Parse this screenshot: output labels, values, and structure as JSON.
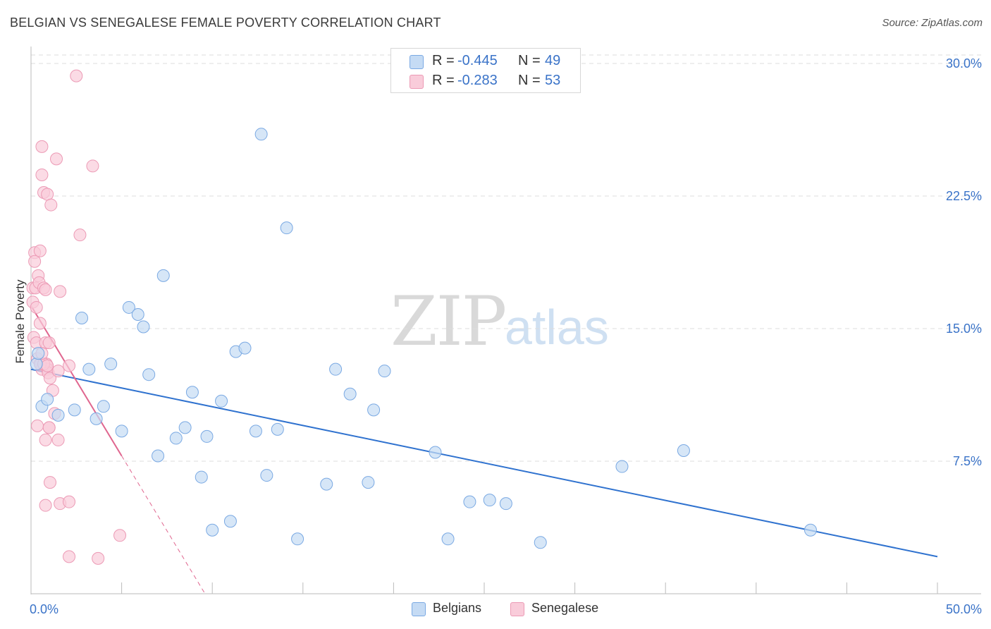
{
  "title": "BELGIAN VS SENEGALESE FEMALE POVERTY CORRELATION CHART",
  "source": "Source: ZipAtlas.com",
  "watermark": {
    "zip": "ZIP",
    "atlas": "atlas"
  },
  "legend": {
    "rows": [
      {
        "r_label": "R =",
        "r_value": "-0.445",
        "n_label": "N =",
        "n_value": "49",
        "color": "#a9c8ef"
      },
      {
        "r_label": "R =",
        "r_value": "-0.283",
        "n_label": "N =",
        "n_value": "53",
        "color": "#f5b8cb"
      }
    ]
  },
  "bottom_legend": [
    {
      "label": "Belgians",
      "color": "#a9c8ef"
    },
    {
      "label": "Senegalese",
      "color": "#f5b8cb"
    }
  ],
  "chart_data": {
    "type": "scatter",
    "title": "BELGIAN VS SENEGALESE FEMALE POVERTY CORRELATION CHART",
    "xlabel": "",
    "ylabel": "Female Poverty",
    "xlim": [
      0,
      50
    ],
    "ylim": [
      0,
      30.8
    ],
    "x_tick_labels": [
      "0.0%",
      "50.0%"
    ],
    "y_ticks": [
      7.5,
      15.0,
      22.5,
      30.0
    ],
    "y_tick_labels": [
      "7.5%",
      "15.0%",
      "22.5%",
      "30.0%"
    ],
    "grid": true,
    "colors": {
      "belgians_fill": "#c5dbf4",
      "belgians_stroke": "#7aa9e3",
      "belgians_line": "#2f72cf",
      "senegalese_fill": "#f9ccda",
      "senegalese_stroke": "#ec9ab5",
      "senegalese_line": "#e0668f"
    },
    "series": [
      {
        "name": "Belgians",
        "points": [
          [
            0.3,
            13.0
          ],
          [
            0.4,
            13.6
          ],
          [
            0.6,
            10.6
          ],
          [
            0.9,
            11.0
          ],
          [
            1.5,
            10.1
          ],
          [
            2.4,
            10.4
          ],
          [
            2.8,
            15.6
          ],
          [
            3.2,
            12.7
          ],
          [
            3.6,
            9.9
          ],
          [
            4.0,
            10.6
          ],
          [
            4.4,
            13.0
          ],
          [
            5.0,
            9.2
          ],
          [
            5.4,
            16.2
          ],
          [
            5.9,
            15.8
          ],
          [
            6.2,
            15.1
          ],
          [
            6.5,
            12.4
          ],
          [
            7.0,
            7.8
          ],
          [
            7.3,
            18.0
          ],
          [
            8.0,
            8.8
          ],
          [
            8.5,
            9.4
          ],
          [
            8.9,
            11.4
          ],
          [
            9.4,
            6.6
          ],
          [
            9.7,
            8.9
          ],
          [
            10.0,
            3.6
          ],
          [
            10.5,
            10.9
          ],
          [
            11.0,
            4.1
          ],
          [
            11.3,
            13.7
          ],
          [
            11.8,
            13.9
          ],
          [
            12.4,
            9.2
          ],
          [
            12.7,
            26.0
          ],
          [
            13.0,
            6.7
          ],
          [
            13.6,
            9.3
          ],
          [
            14.1,
            20.7
          ],
          [
            14.7,
            3.1
          ],
          [
            16.3,
            6.2
          ],
          [
            16.8,
            12.7
          ],
          [
            17.6,
            11.3
          ],
          [
            18.6,
            6.3
          ],
          [
            18.9,
            10.4
          ],
          [
            19.5,
            12.6
          ],
          [
            22.3,
            8.0
          ],
          [
            23.0,
            3.1
          ],
          [
            24.2,
            5.2
          ],
          [
            25.3,
            5.3
          ],
          [
            26.2,
            5.1
          ],
          [
            28.1,
            2.9
          ],
          [
            32.6,
            7.2
          ],
          [
            36.0,
            8.1
          ],
          [
            43.0,
            3.6
          ]
        ],
        "trend": [
          [
            0,
            12.7
          ],
          [
            50,
            2.1
          ]
        ]
      },
      {
        "name": "Senegalese",
        "points": [
          [
            0.1,
            17.3
          ],
          [
            0.1,
            16.5
          ],
          [
            0.15,
            14.5
          ],
          [
            0.2,
            19.3
          ],
          [
            0.2,
            18.8
          ],
          [
            0.25,
            17.3
          ],
          [
            0.3,
            16.2
          ],
          [
            0.3,
            14.2
          ],
          [
            0.35,
            13.3
          ],
          [
            0.4,
            18.0
          ],
          [
            0.45,
            17.6
          ],
          [
            0.5,
            15.3
          ],
          [
            0.5,
            19.4
          ],
          [
            0.55,
            13.0
          ],
          [
            0.6,
            25.3
          ],
          [
            0.6,
            23.7
          ],
          [
            0.6,
            12.7
          ],
          [
            0.7,
            22.7
          ],
          [
            0.7,
            17.3
          ],
          [
            0.8,
            17.2
          ],
          [
            0.8,
            14.2
          ],
          [
            0.85,
            13.0
          ],
          [
            0.9,
            12.7
          ],
          [
            0.9,
            22.6
          ],
          [
            0.95,
            12.5
          ],
          [
            1.0,
            14.2
          ],
          [
            1.05,
            12.2
          ],
          [
            1.1,
            22.0
          ],
          [
            1.2,
            11.5
          ],
          [
            1.3,
            10.2
          ],
          [
            1.5,
            12.6
          ],
          [
            1.6,
            17.1
          ],
          [
            0.35,
            9.5
          ],
          [
            0.8,
            8.7
          ],
          [
            1.0,
            9.4
          ],
          [
            1.5,
            8.7
          ],
          [
            0.8,
            5.0
          ],
          [
            1.05,
            6.3
          ],
          [
            1.6,
            5.1
          ],
          [
            2.1,
            5.2
          ],
          [
            2.1,
            2.1
          ],
          [
            2.5,
            29.3
          ],
          [
            1.4,
            24.6
          ],
          [
            2.7,
            20.3
          ],
          [
            3.4,
            24.2
          ],
          [
            3.7,
            2.0
          ],
          [
            4.9,
            3.3
          ],
          [
            2.1,
            12.9
          ],
          [
            1.0,
            9.4
          ],
          [
            0.5,
            13.0
          ],
          [
            0.7,
            13.0
          ],
          [
            0.6,
            13.6
          ],
          [
            0.9,
            12.9
          ]
        ],
        "trend": [
          [
            0,
            16.3
          ],
          [
            5,
            7.8
          ]
        ],
        "trend_extension": [
          [
            5,
            7.8
          ],
          [
            9.6,
            0
          ]
        ]
      }
    ]
  }
}
